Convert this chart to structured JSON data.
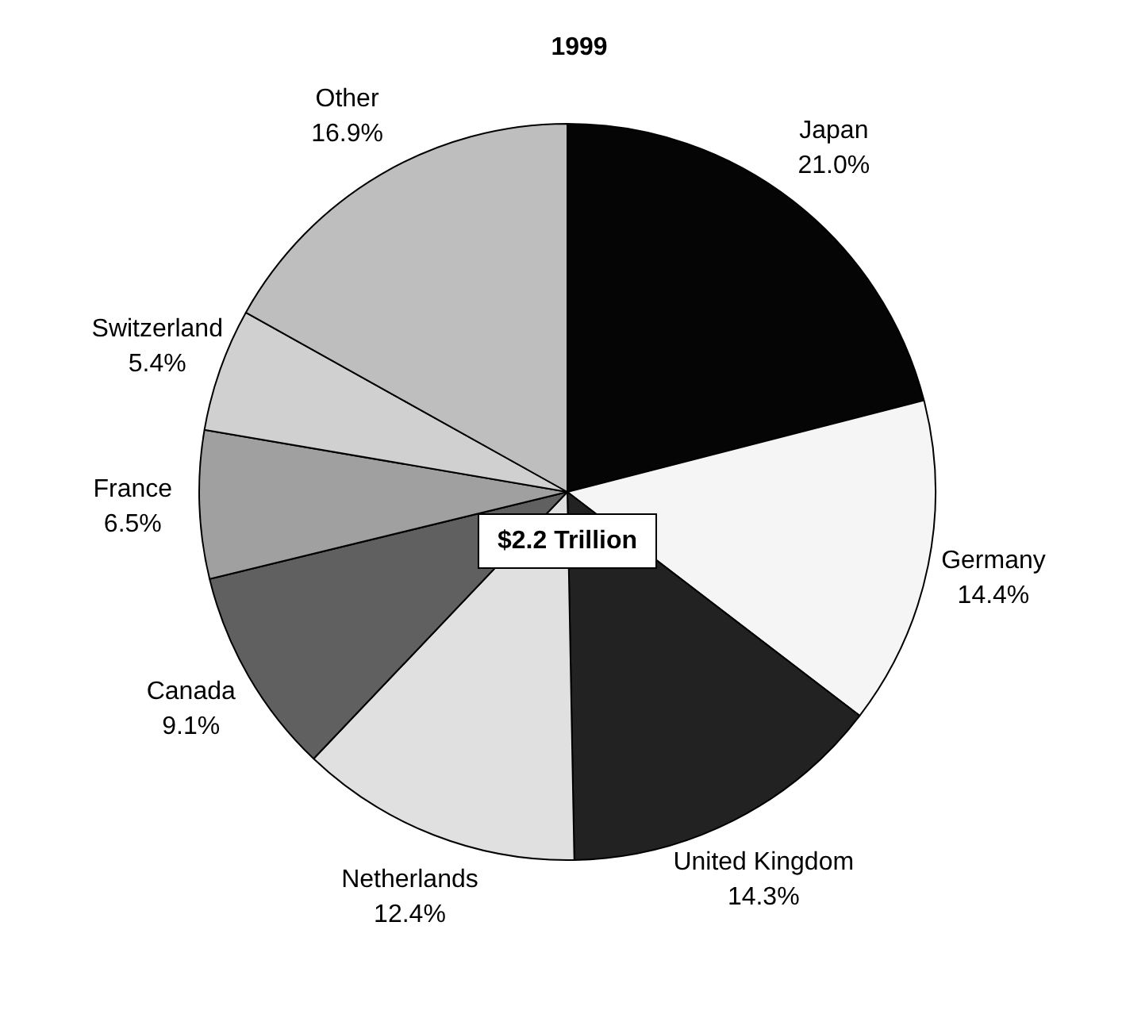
{
  "chart_data": {
    "type": "pie",
    "title": "1999",
    "categories": [
      "Japan",
      "Germany",
      "United Kingdom",
      "Netherlands",
      "Canada",
      "France",
      "Switzerland",
      "Other"
    ],
    "values": [
      21.0,
      14.4,
      14.3,
      12.4,
      9.1,
      6.5,
      5.4,
      16.9
    ],
    "value_labels": [
      "21.0%",
      "14.4%",
      "14.3%",
      "12.4%",
      "9.1%",
      "6.5%",
      "5.4%",
      "16.9%"
    ],
    "colors": [
      "#050505",
      "#f5f5f5",
      "#222222",
      "#e0e0e0",
      "#606060",
      "#a0a0a0",
      "#d0d0d0",
      "#bebebe"
    ],
    "annotations": [
      "$2.2 Trillion"
    ],
    "legend": false
  }
}
